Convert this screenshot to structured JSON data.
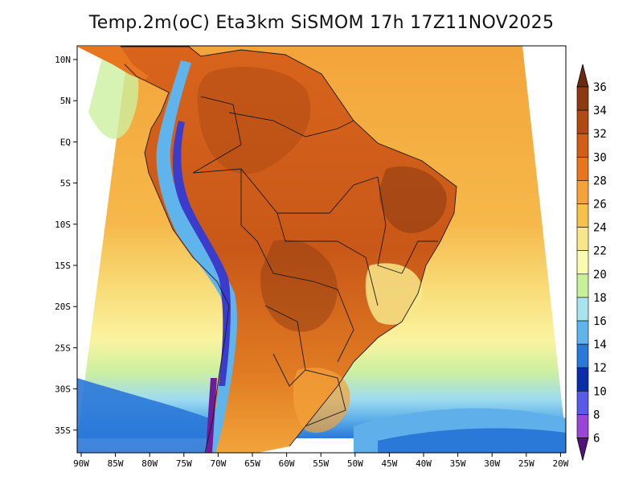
{
  "title": "Temp.2m(oC) Eta3km SiSMOM 17h 17Z11NOV2025",
  "lat_labels": [
    "10N",
    "5N",
    "EQ",
    "5S",
    "10S",
    "15S",
    "20S",
    "25S",
    "30S",
    "35S"
  ],
  "lon_labels": [
    "90W",
    "85W",
    "80W",
    "75W",
    "70W",
    "65W",
    "60W",
    "55W",
    "50W",
    "45W",
    "40W",
    "35W",
    "30W",
    "25W",
    "20W"
  ],
  "colorbar": {
    "labels": [
      "36",
      "34",
      "32",
      "30",
      "28",
      "26",
      "24",
      "22",
      "20",
      "18",
      "16",
      "14",
      "12",
      "10",
      "8",
      "6"
    ],
    "colors": [
      "#8b3a12",
      "#b04a14",
      "#d05e17",
      "#e8761e",
      "#f4a23a",
      "#f7c24b",
      "#f8e78a",
      "#fafab0",
      "#c8f09a",
      "#a8e4f0",
      "#5fb4ec",
      "#2a78d8",
      "#0a2ea8",
      "#5a5ae8",
      "#9a44d8",
      "#6e1c9a"
    ],
    "top_color": "#6b2a10",
    "bottom_color": "#52127a"
  }
}
